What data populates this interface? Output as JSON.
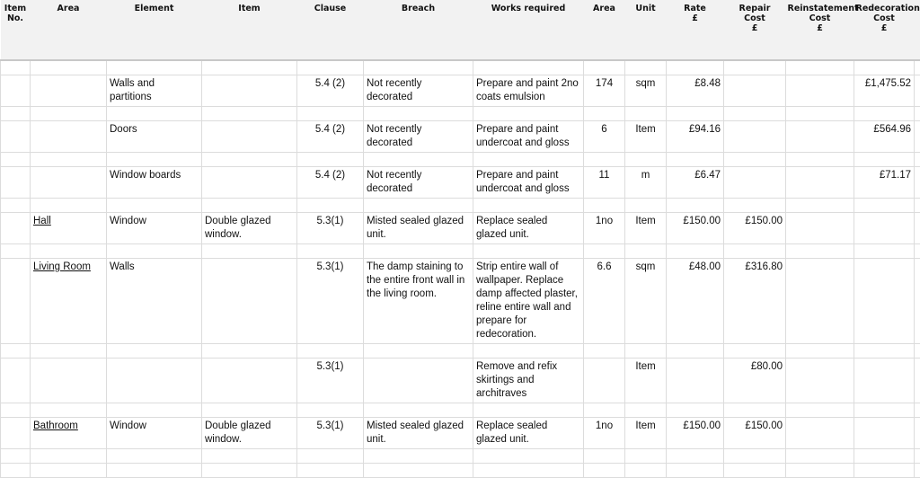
{
  "headers": [
    "Item\nNo.",
    "Area",
    "Element",
    "Item",
    "Clause",
    "Breach",
    "Works  required",
    "Area",
    "Unit",
    "Rate\n£",
    "Repair\nCost\n£",
    "Reinstatement\nCost\n£",
    "Redecoration\nCost\n£",
    ""
  ],
  "rows": [
    {
      "area": "",
      "element": "Walls and partitions",
      "item": "",
      "clause": "5.4 (2)",
      "breach": "Not recently decorated",
      "works": "Prepare and paint 2no coats emulsion",
      "qty": "174",
      "unit": "sqm",
      "rate": "£8.48",
      "repair": "",
      "reinstatement": "",
      "redecoration": "£1,475.52"
    },
    {
      "area": "",
      "element": "Doors",
      "item": "",
      "clause": "5.4 (2)",
      "breach": "Not recently decorated",
      "works": "Prepare and paint undercoat and gloss",
      "qty": "6",
      "unit": "Item",
      "rate": "£94.16",
      "repair": "",
      "reinstatement": "",
      "redecoration": "£564.96"
    },
    {
      "area": "",
      "element": "Window boards",
      "item": "",
      "clause": "5.4 (2)",
      "breach": "Not recently decorated",
      "works": "Prepare and paint undercoat and gloss",
      "qty": "11",
      "unit": "m",
      "rate": "£6.47",
      "repair": "",
      "reinstatement": "",
      "redecoration": "£71.17"
    },
    {
      "area": "Hall",
      "element": "Window",
      "item": "Double glazed window.",
      "clause": "5.3(1)",
      "breach": "Misted sealed glazed unit.",
      "works": "Replace sealed glazed unit.",
      "qty": "1no",
      "unit": "Item",
      "rate": "£150.00",
      "repair": "£150.00",
      "reinstatement": "",
      "redecoration": ""
    },
    {
      "area": "Living Room",
      "element": "Walls",
      "item": "",
      "clause": "5.3(1)",
      "breach": "The damp staining to the entire front wall in the living room.",
      "works": "Strip entire wall of wallpaper.  Replace damp affected plaster, reline entire wall and prepare for redecoration.",
      "qty": "6.6",
      "unit": "sqm",
      "rate": "£48.00",
      "repair": "£316.80",
      "reinstatement": "",
      "redecoration": ""
    },
    {
      "area": "",
      "element": "",
      "item": "",
      "clause": "5.3(1)",
      "breach": "",
      "works": "Remove and refix skirtings and architraves",
      "qty": "",
      "unit": "Item",
      "rate": "",
      "repair": "£80.00",
      "reinstatement": "",
      "redecoration": ""
    },
    {
      "area": "Bathroom",
      "element": "Window",
      "item": "Double glazed window.",
      "clause": "5.3(1)",
      "breach": "Misted sealed glazed unit.",
      "works": "Replace sealed glazed unit.",
      "qty": "1no",
      "unit": "Item",
      "rate": "£150.00",
      "repair": "£150.00",
      "reinstatement": "",
      "redecoration": ""
    }
  ]
}
